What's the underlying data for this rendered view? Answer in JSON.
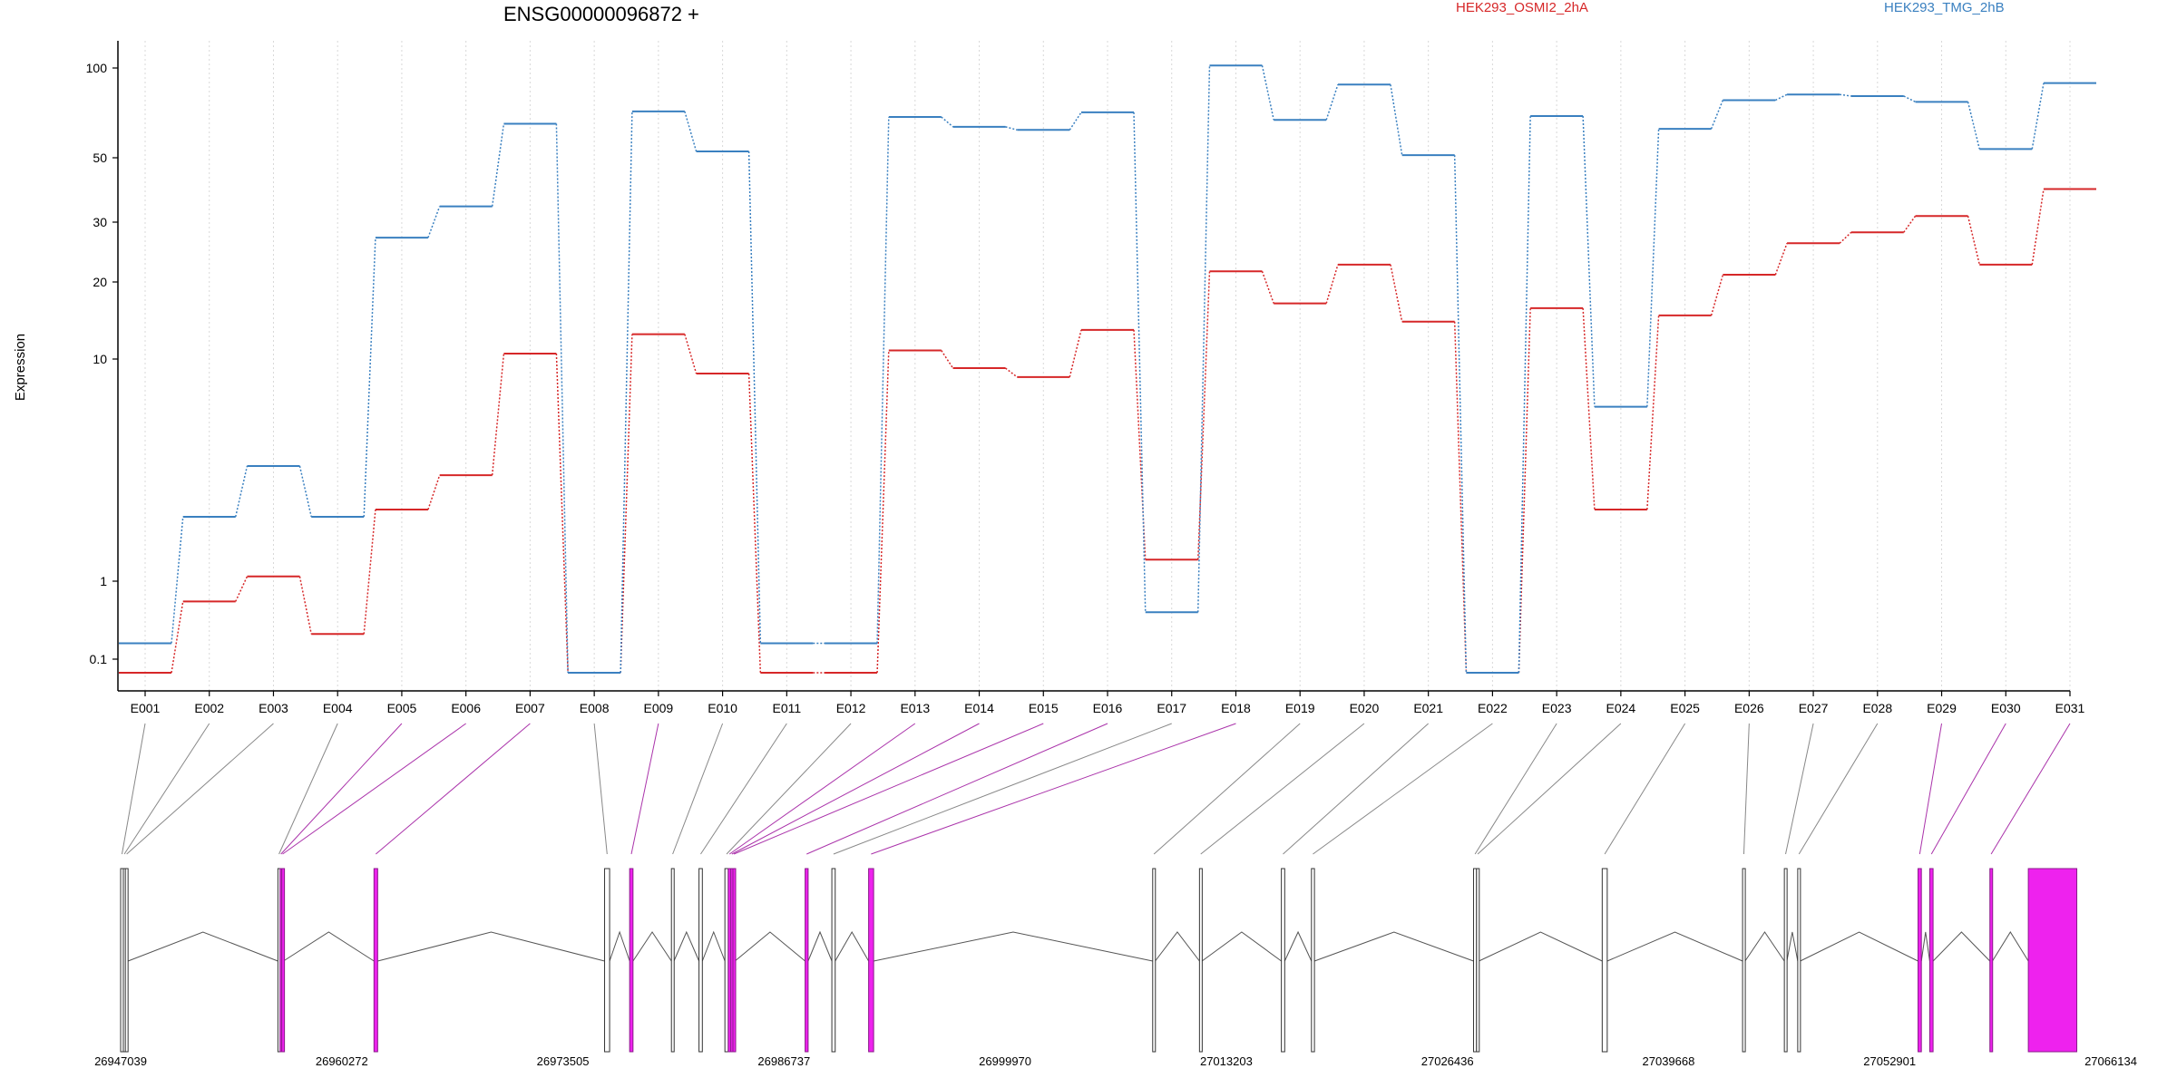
{
  "chart_data": {
    "type": "line",
    "title": "ENSG00000096872 +",
    "ylabel": "Expression",
    "xlabel": "",
    "y_scale": "log",
    "y_ticks": [
      "0.1",
      "1",
      "10",
      "20",
      "30",
      "50",
      "100"
    ],
    "grid": "vertical dotted lines at exon positions",
    "legend_placement": "top",
    "series_colors": {
      "HEK293_OSMI2_2hA": "#d62728",
      "HEK293_TMG_2hB": "#3a80c0"
    },
    "categories": [
      "E001",
      "E002",
      "E003",
      "E004",
      "E005",
      "E006",
      "E007",
      "E008",
      "E009",
      "E010",
      "E011",
      "E012",
      "E013",
      "E014",
      "E015",
      "E016",
      "E017",
      "E018",
      "E019",
      "E020",
      "E021",
      "E022",
      "E023",
      "E024",
      "E025",
      "E026",
      "E027",
      "E028",
      "E029",
      "E030",
      "E031"
    ],
    "series": [
      {
        "name": "HEK293_OSMI2_2hA",
        "values": [
          0.06,
          0.55,
          1.05,
          0.21,
          2.1,
          3.0,
          10.5,
          0.06,
          12.5,
          8.6,
          0.06,
          0.06,
          10.8,
          9.1,
          8.3,
          13.0,
          1.25,
          21.5,
          16.5,
          22.5,
          14.0,
          0.06,
          15.8,
          2.1,
          14.8,
          21.0,
          26.0,
          28.0,
          31.5,
          22.5,
          39.0
        ]
      },
      {
        "name": "HEK293_TMG_2hB",
        "values": [
          0.16,
          1.95,
          3.3,
          1.95,
          27.0,
          34.0,
          65.0,
          0.06,
          71.5,
          52.5,
          0.16,
          0.16,
          68.5,
          63.5,
          62.0,
          71.0,
          0.4,
          102.0,
          67.0,
          88.0,
          51.0,
          0.06,
          69.0,
          6.1,
          62.5,
          78.0,
          81.5,
          80.5,
          77.0,
          53.5,
          89.0
        ]
      }
    ],
    "gene_model": {
      "coordinate_labels": [
        "26947039",
        "26960272",
        "26973505",
        "26986737",
        "26999970",
        "27013203",
        "27026436",
        "27039668",
        "27052901",
        "27066134"
      ],
      "exons": [
        {
          "id": "E001",
          "start": 26947039,
          "end": 26947200,
          "highlight": false
        },
        {
          "id": "E002",
          "start": 26947200,
          "end": 26947320,
          "highlight": false
        },
        {
          "id": "E003",
          "start": 26947320,
          "end": 26947480,
          "highlight": false
        },
        {
          "id": "E004",
          "start": 26956450,
          "end": 26956580,
          "highlight": false
        },
        {
          "id": "E005",
          "start": 26956580,
          "end": 26956680,
          "highlight": true
        },
        {
          "id": "E006",
          "start": 26956680,
          "end": 26956780,
          "highlight": true
        },
        {
          "id": "E007",
          "start": 26962200,
          "end": 26962420,
          "highlight": true
        },
        {
          "id": "E008",
          "start": 26976000,
          "end": 26976300,
          "highlight": false
        },
        {
          "id": "E009",
          "start": 26977500,
          "end": 26977700,
          "highlight": true
        },
        {
          "id": "E010",
          "start": 26980000,
          "end": 26980150,
          "highlight": false
        },
        {
          "id": "E011",
          "start": 26981650,
          "end": 26981850,
          "highlight": false
        },
        {
          "id": "E012",
          "start": 26983200,
          "end": 26983400,
          "highlight": false
        },
        {
          "id": "E013",
          "start": 26983400,
          "end": 26983550,
          "highlight": true
        },
        {
          "id": "E014",
          "start": 26983550,
          "end": 26983680,
          "highlight": true
        },
        {
          "id": "E015",
          "start": 26983680,
          "end": 26983800,
          "highlight": true
        },
        {
          "id": "E016",
          "start": 26988000,
          "end": 26988180,
          "highlight": true
        },
        {
          "id": "E017",
          "start": 26989600,
          "end": 26989800,
          "highlight": false
        },
        {
          "id": "E018",
          "start": 26991800,
          "end": 26992100,
          "highlight": true
        },
        {
          "id": "E019",
          "start": 27008800,
          "end": 27008950,
          "highlight": false
        },
        {
          "id": "E020",
          "start": 27011600,
          "end": 27011750,
          "highlight": false
        },
        {
          "id": "E021",
          "start": 27016500,
          "end": 27016700,
          "highlight": false
        },
        {
          "id": "E022",
          "start": 27018300,
          "end": 27018480,
          "highlight": false
        },
        {
          "id": "E023",
          "start": 27028000,
          "end": 27028180,
          "highlight": false
        },
        {
          "id": "E024",
          "start": 27028180,
          "end": 27028320,
          "highlight": false
        },
        {
          "id": "E025",
          "start": 27035700,
          "end": 27036000,
          "highlight": false
        },
        {
          "id": "E026",
          "start": 27044100,
          "end": 27044250,
          "highlight": false
        },
        {
          "id": "E027",
          "start": 27046600,
          "end": 27046750,
          "highlight": false
        },
        {
          "id": "E028",
          "start": 27047400,
          "end": 27047550,
          "highlight": false
        },
        {
          "id": "E029",
          "start": 27054600,
          "end": 27054800,
          "highlight": true
        },
        {
          "id": "E030",
          "start": 27055300,
          "end": 27055500,
          "highlight": true
        },
        {
          "id": "E031",
          "start": 27058900,
          "end": 27059050,
          "highlight": true
        },
        {
          "id": "E031b",
          "start": 27061200,
          "end": 27064100,
          "highlight": true
        }
      ]
    }
  }
}
